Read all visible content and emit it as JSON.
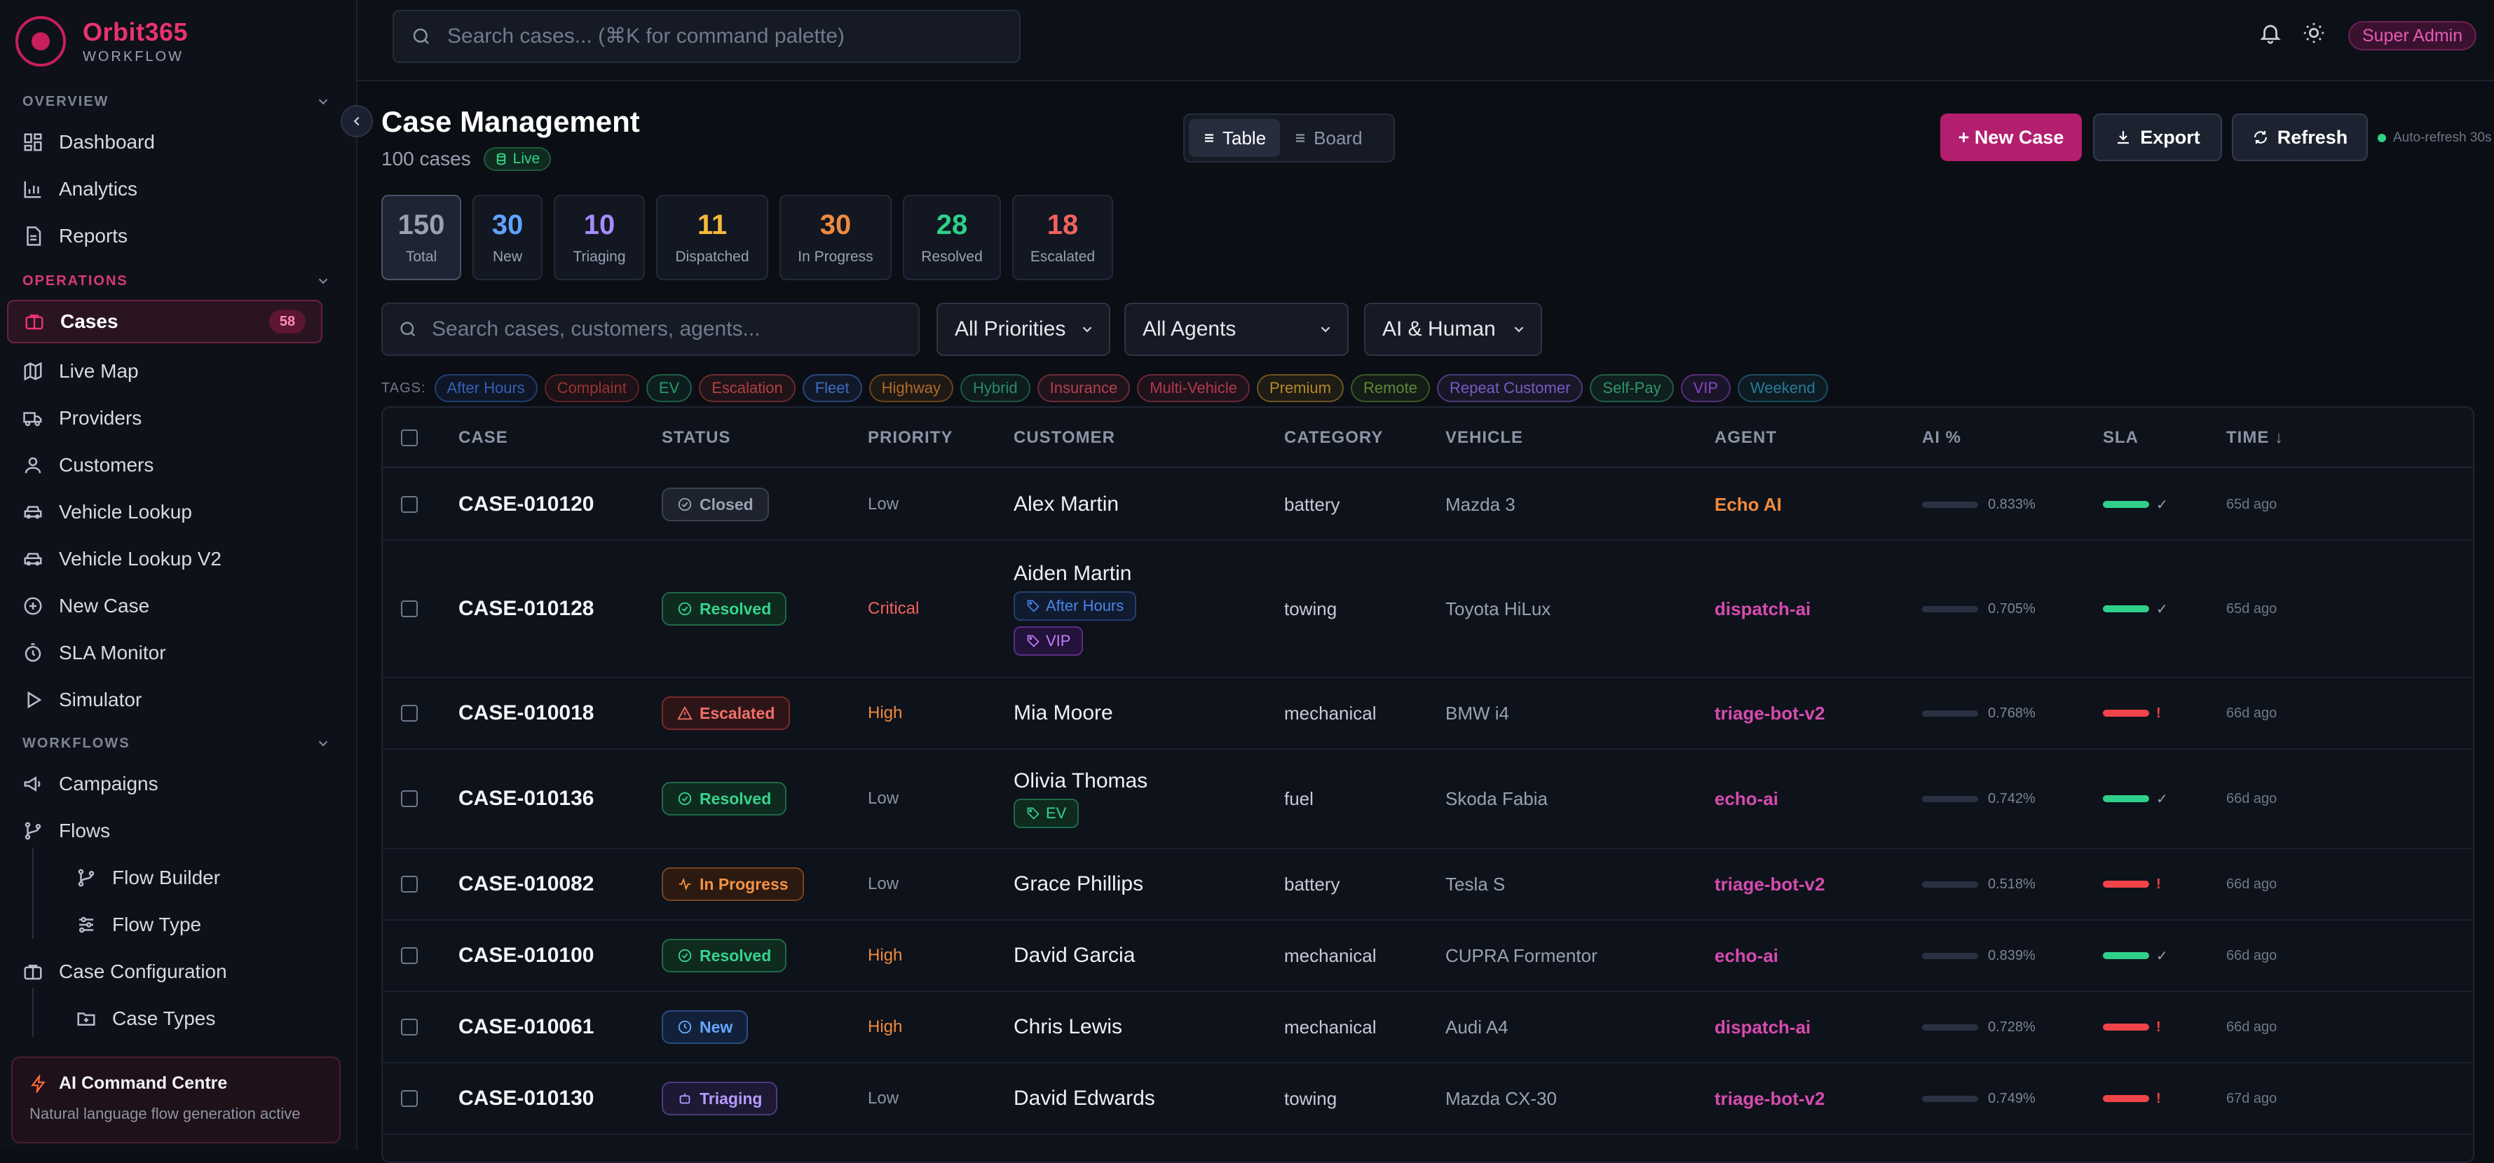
{
  "brand": {
    "name": "Orbit365",
    "sub": "WORKFLOW"
  },
  "sidebar": {
    "sections": {
      "overview": "OVERVIEW",
      "operations": "OPERATIONS",
      "workflows": "WORKFLOWS"
    },
    "items": [
      {
        "label": "Dashboard",
        "icon": "dashboard-icon"
      },
      {
        "label": "Analytics",
        "icon": "bar-chart-icon"
      },
      {
        "label": "Reports",
        "icon": "document-icon"
      },
      {
        "label": "Cases",
        "icon": "briefcase-icon",
        "badge": "58",
        "active": true
      },
      {
        "label": "Live Map",
        "icon": "map-icon"
      },
      {
        "label": "Providers",
        "icon": "truck-icon"
      },
      {
        "label": "Customers",
        "icon": "user-icon"
      },
      {
        "label": "Vehicle Lookup",
        "icon": "car-icon"
      },
      {
        "label": "Vehicle Lookup V2",
        "icon": "car-icon"
      },
      {
        "label": "New Case",
        "icon": "plus-circle-icon"
      },
      {
        "label": "SLA Monitor",
        "icon": "timer-icon"
      },
      {
        "label": "Simulator",
        "icon": "play-icon"
      },
      {
        "label": "Campaigns",
        "icon": "megaphone-icon"
      },
      {
        "label": "Flows",
        "icon": "branch-icon"
      },
      {
        "label": "Flow Builder",
        "icon": "branch-icon"
      },
      {
        "label": "Flow Type",
        "icon": "sliders-icon"
      },
      {
        "label": "Case Configuration",
        "icon": "briefcase-icon"
      },
      {
        "label": "Case Types",
        "icon": "folder-plus-icon"
      }
    ],
    "ai_card": {
      "title": "AI Command Centre",
      "subtitle": "Natural language flow generation active"
    }
  },
  "topbar": {
    "search_placeholder": "Search cases... (⌘K for command palette)",
    "role": "Super Admin"
  },
  "header": {
    "title": "Case Management",
    "count": "100 cases",
    "live": "Live",
    "views": [
      "Table",
      "Board"
    ],
    "new_case": "+ New Case",
    "export": "Export",
    "refresh": "Refresh",
    "auto_refresh": "Auto-refresh 30s"
  },
  "stats": [
    {
      "value": "150",
      "label": "Total",
      "color": "#9aa1b2"
    },
    {
      "value": "30",
      "label": "New",
      "color": "#5ea3ff"
    },
    {
      "value": "10",
      "label": "Triaging",
      "color": "#a78bfa"
    },
    {
      "value": "11",
      "label": "Dispatched",
      "color": "#f5b93a"
    },
    {
      "value": "30",
      "label": "In Progress",
      "color": "#f08a3c"
    },
    {
      "value": "28",
      "label": "Resolved",
      "color": "#2fd08a"
    },
    {
      "value": "18",
      "label": "Escalated",
      "color": "#f2625d"
    }
  ],
  "filters": {
    "search_placeholder": "Search cases, customers, agents...",
    "priority": "All Priorities",
    "agents": "All Agents",
    "mode": "AI & Human",
    "tags_label": "TAGS:",
    "tags": [
      {
        "label": "After Hours",
        "color": "#3b6fd1"
      },
      {
        "label": "Complaint",
        "color": "#b23a3a"
      },
      {
        "label": "EV",
        "color": "#2fb07a"
      },
      {
        "label": "Escalation",
        "color": "#d04a4a"
      },
      {
        "label": "Fleet",
        "color": "#4a7de0"
      },
      {
        "label": "Highway",
        "color": "#d07a2a"
      },
      {
        "label": "Hybrid",
        "color": "#2fa07a"
      },
      {
        "label": "Insurance",
        "color": "#d04a5a"
      },
      {
        "label": "Multi-Vehicle",
        "color": "#d0405a"
      },
      {
        "label": "Premium",
        "color": "#d0a02a"
      },
      {
        "label": "Remote",
        "color": "#6aa03a"
      },
      {
        "label": "Repeat Customer",
        "color": "#8a6ae0"
      },
      {
        "label": "Self-Pay",
        "color": "#3ab07a"
      },
      {
        "label": "VIP",
        "color": "#a050e0"
      },
      {
        "label": "Weekend",
        "color": "#2a90b0"
      }
    ]
  },
  "table": {
    "columns": [
      "CASE",
      "STATUS",
      "PRIORITY",
      "CUSTOMER",
      "CATEGORY",
      "VEHICLE",
      "AGENT",
      "AI %",
      "SLA",
      "TIME ↓"
    ],
    "rows": [
      {
        "id": "CASE-010120",
        "status": "Closed",
        "status_kind": "closed",
        "priority": "Low",
        "customer": "Alex Martin",
        "tags": [],
        "category": "battery",
        "vehicle": "Mazda 3",
        "agent": "Echo AI",
        "agent_color": "#f08a3c",
        "ai": "0.833%",
        "sla_ok": true,
        "time": "65d ago"
      },
      {
        "id": "CASE-010128",
        "status": "Resolved",
        "status_kind": "resolved",
        "priority": "Critical",
        "customer": "Aiden Martin",
        "tags": [
          {
            "label": "After Hours",
            "kind": "afterhours"
          },
          {
            "label": "VIP",
            "kind": "vip"
          }
        ],
        "category": "towing",
        "vehicle": "Toyota HiLux",
        "agent": "dispatch-ai",
        "agent_color": "#d64bb0",
        "ai": "0.705%",
        "sla_ok": true,
        "time": "65d ago"
      },
      {
        "id": "CASE-010018",
        "status": "Escalated",
        "status_kind": "escalated",
        "priority": "High",
        "customer": "Mia Moore",
        "tags": [],
        "category": "mechanical",
        "vehicle": "BMW i4",
        "agent": "triage-bot-v2",
        "agent_color": "#d64bb0",
        "ai": "0.768%",
        "sla_ok": false,
        "time": "66d ago"
      },
      {
        "id": "CASE-010136",
        "status": "Resolved",
        "status_kind": "resolved",
        "priority": "Low",
        "customer": "Olivia Thomas",
        "tags": [
          {
            "label": "EV",
            "kind": "ev"
          }
        ],
        "category": "fuel",
        "vehicle": "Skoda Fabia",
        "agent": "echo-ai",
        "agent_color": "#d64bb0",
        "ai": "0.742%",
        "sla_ok": true,
        "time": "66d ago"
      },
      {
        "id": "CASE-010082",
        "status": "In Progress",
        "status_kind": "progress",
        "priority": "Low",
        "customer": "Grace Phillips",
        "tags": [],
        "category": "battery",
        "vehicle": "Tesla S",
        "agent": "triage-bot-v2",
        "agent_color": "#d64bb0",
        "ai": "0.518%",
        "sla_ok": false,
        "time": "66d ago"
      },
      {
        "id": "CASE-010100",
        "status": "Resolved",
        "status_kind": "resolved",
        "priority": "High",
        "customer": "David Garcia",
        "tags": [],
        "category": "mechanical",
        "vehicle": "CUPRA Formentor",
        "agent": "echo-ai",
        "agent_color": "#d64bb0",
        "ai": "0.839%",
        "sla_ok": true,
        "time": "66d ago"
      },
      {
        "id": "CASE-010061",
        "status": "New",
        "status_kind": "new",
        "priority": "High",
        "customer": "Chris Lewis",
        "tags": [],
        "category": "mechanical",
        "vehicle": "Audi A4",
        "agent": "dispatch-ai",
        "agent_color": "#d64bb0",
        "ai": "0.728%",
        "sla_ok": false,
        "time": "66d ago"
      },
      {
        "id": "CASE-010130",
        "status": "Triaging",
        "status_kind": "triaging",
        "priority": "Low",
        "customer": "David Edwards",
        "tags": [],
        "category": "towing",
        "vehicle": "Mazda CX-30",
        "agent": "triage-bot-v2",
        "agent_color": "#d64bb0",
        "ai": "0.749%",
        "sla_ok": false,
        "time": "67d ago"
      }
    ]
  }
}
